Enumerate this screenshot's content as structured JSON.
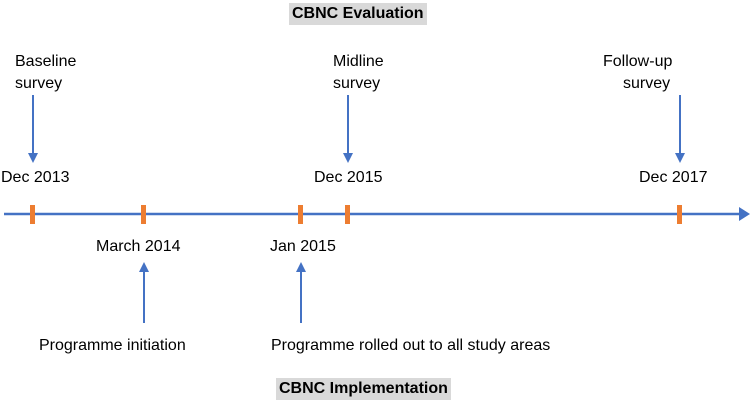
{
  "colors": {
    "axis": "#4472c4",
    "arrow": "#4472c4",
    "tick": "#ed7d31",
    "title_bg": "#d9d9d9"
  },
  "titles": {
    "evaluation": "CBNC Evaluation",
    "implementation": "CBNC Implementation"
  },
  "evaluation_events": [
    {
      "date": "Dec 2013",
      "label_line1": "Baseline",
      "label_line2": "survey"
    },
    {
      "date": "Dec 2015",
      "label_line1": "Midline",
      "label_line2": "survey"
    },
    {
      "date": "Dec 2017",
      "label_line1": "Follow-up",
      "label_line2": "survey"
    }
  ],
  "implementation_events": [
    {
      "date": "March 2014",
      "label": "Programme initiation"
    },
    {
      "date": "Jan 2015",
      "label": "Programme rolled out to all study areas"
    }
  ]
}
